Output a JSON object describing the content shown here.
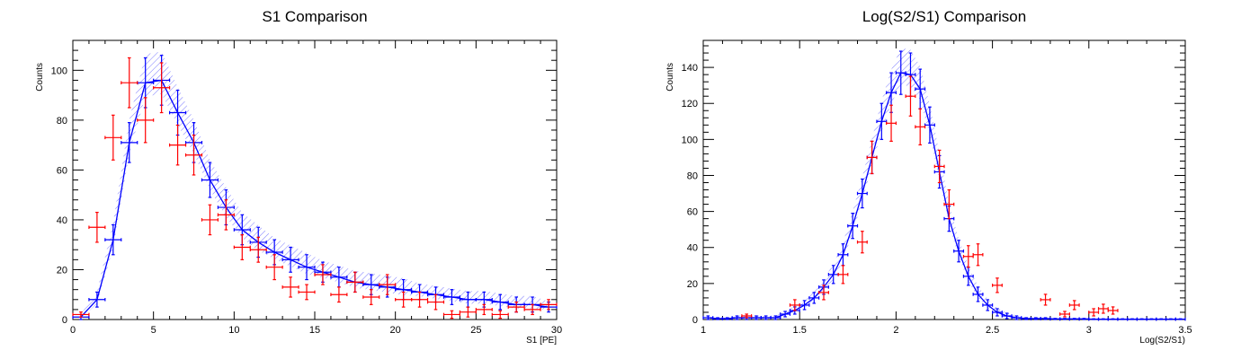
{
  "chart_data": [
    {
      "type": "line",
      "title": "S1 Comparison",
      "xlabel": "S1 [PE]",
      "ylabel": "Counts",
      "xlim": [
        0,
        30
      ],
      "ylim": [
        0,
        112
      ],
      "xticks": [
        0,
        5,
        10,
        15,
        20,
        25,
        30
      ],
      "yticks": [
        0,
        20,
        40,
        60,
        80,
        100
      ],
      "grid": false,
      "series": [
        {
          "color": "#0000ff",
          "style": "line+errorbars+hatched-band",
          "x": [
            0.5,
            1.5,
            2.5,
            3.5,
            4.5,
            5.5,
            6.5,
            7.5,
            8.5,
            9.5,
            10.5,
            11.5,
            12.5,
            13.5,
            14.5,
            15.5,
            16.5,
            17.5,
            18.5,
            19.5,
            20.5,
            21.5,
            22.5,
            23.5,
            24.5,
            25.5,
            26.5,
            27.5,
            28.5,
            29.5
          ],
          "y": [
            1,
            8,
            32,
            71,
            95,
            96,
            83,
            71,
            56,
            45,
            36,
            31,
            27,
            24,
            21,
            19,
            17,
            15,
            14,
            13,
            12,
            11,
            10,
            9,
            8,
            8,
            7,
            6,
            6,
            5
          ],
          "yerr": [
            1,
            3,
            6,
            8,
            10,
            10,
            9,
            8,
            7,
            7,
            6,
            6,
            5,
            5,
            5,
            4,
            4,
            4,
            4,
            4,
            4,
            3,
            3,
            3,
            3,
            3,
            3,
            3,
            3,
            2
          ]
        },
        {
          "color": "#ff0000",
          "style": "points+errorbars",
          "x": [
            0.5,
            1.5,
            2.5,
            3.5,
            4.5,
            5.5,
            6.5,
            7.5,
            8.5,
            9.5,
            10.5,
            11.5,
            12.5,
            13.5,
            14.5,
            15.5,
            16.5,
            17.5,
            18.5,
            19.5,
            20.5,
            21.5,
            22.5,
            23.5,
            24.5,
            25.5,
            26.5,
            27.5,
            28.5,
            29.5
          ],
          "y": [
            2,
            37,
            73,
            95,
            80,
            93,
            70,
            66,
            40,
            42,
            29,
            28,
            21,
            13,
            11,
            18,
            10,
            15,
            9,
            14,
            8,
            8,
            7,
            2,
            3,
            4,
            2,
            5,
            4,
            6
          ],
          "yerr": [
            1,
            6,
            9,
            10,
            9,
            10,
            8,
            8,
            6,
            6,
            5,
            5,
            5,
            4,
            3,
            4,
            3,
            4,
            3,
            4,
            3,
            3,
            3,
            1.5,
            2,
            2,
            1.5,
            2,
            2,
            2
          ]
        }
      ]
    },
    {
      "type": "line",
      "title": "Log(S2/S1) Comparison",
      "xlabel": "Log(S2/S1)",
      "ylabel": "Counts",
      "xlim": [
        1,
        3.5
      ],
      "ylim": [
        0,
        155
      ],
      "xticks": [
        1,
        1.5,
        2,
        2.5,
        3,
        3.5
      ],
      "yticks": [
        0,
        20,
        40,
        60,
        80,
        100,
        120,
        140
      ],
      "grid": false,
      "series": [
        {
          "color": "#0000ff",
          "style": "line+errorbars+hatched-band",
          "x": [
            1.025,
            1.075,
            1.125,
            1.175,
            1.225,
            1.275,
            1.325,
            1.375,
            1.425,
            1.475,
            1.525,
            1.575,
            1.625,
            1.675,
            1.725,
            1.775,
            1.825,
            1.875,
            1.925,
            1.975,
            2.025,
            2.075,
            2.125,
            2.175,
            2.225,
            2.275,
            2.325,
            2.375,
            2.425,
            2.475,
            2.525,
            2.575,
            2.625,
            2.675,
            2.725,
            2.775,
            2.825,
            2.875,
            2.925,
            2.975,
            3.025,
            3.075,
            3.125,
            3.175,
            3.225,
            3.275,
            3.325,
            3.375,
            3.425,
            3.475
          ],
          "y": [
            1,
            0.5,
            0.5,
            1,
            1,
            1,
            1,
            1,
            3,
            5,
            8,
            12,
            18,
            25,
            36,
            52,
            70,
            90,
            110,
            126,
            137,
            136,
            128,
            108,
            82,
            56,
            38,
            24,
            14,
            8,
            4,
            2,
            1,
            0.5,
            0.5,
            0.5,
            0.3,
            0.3,
            0.3,
            0.3,
            0.2,
            0.2,
            0.2,
            0.2,
            0.2,
            0.2,
            0.2,
            0.2,
            0.2,
            0.2
          ],
          "yerr": [
            1,
            0.5,
            0.5,
            1,
            1,
            1,
            1,
            1,
            1.5,
            2,
            2.5,
            3,
            4,
            5,
            6,
            7,
            8,
            9,
            10,
            11,
            12,
            12,
            11,
            10,
            9,
            7,
            6,
            5,
            4,
            3,
            2,
            1.5,
            1,
            0.5,
            0.5,
            0.5,
            0.3,
            0.3,
            0.3,
            0.3,
            0.2,
            0.2,
            0.2,
            0.2,
            0.2,
            0.2,
            0.2,
            0.2,
            0.2,
            0.2
          ]
        },
        {
          "color": "#ff0000",
          "style": "points+errorbars",
          "x": [
            1.225,
            1.475,
            1.625,
            1.725,
            1.825,
            1.875,
            1.975,
            2.075,
            2.125,
            2.225,
            2.275,
            2.375,
            2.425,
            2.525,
            2.775,
            2.875,
            2.925,
            3.025,
            3.075,
            3.125
          ],
          "y": [
            2,
            8,
            15,
            25,
            43,
            90,
            109,
            124,
            107,
            85,
            64,
            35,
            36,
            19,
            11,
            3,
            8,
            4,
            6,
            5
          ],
          "yerr": [
            1,
            3,
            4,
            5,
            6,
            9,
            10,
            11,
            10,
            9,
            8,
            6,
            6,
            4,
            3,
            1.5,
            2.5,
            2,
            2.5,
            2
          ]
        }
      ]
    }
  ]
}
